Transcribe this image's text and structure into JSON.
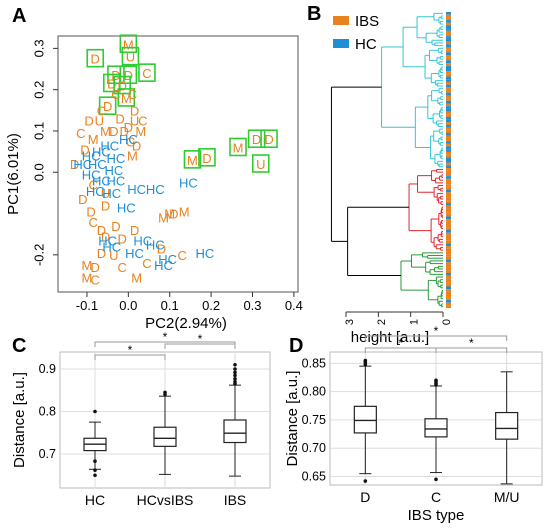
{
  "panels": {
    "a": "A",
    "b": "B",
    "c": "C",
    "d": "D"
  },
  "colors": {
    "ibs": "#e8821e",
    "hc": "#1e8fd6",
    "box_green": "#2ecc2e",
    "dend_cyan": "#33c6d6",
    "dend_red": "#e0262e",
    "dend_green": "#2a9a3a",
    "dend_black": "#000000"
  },
  "chart_data": [
    {
      "panel": "A",
      "type": "scatter",
      "xlabel": "PC2(2.94%)",
      "ylabel": "PC1(6.01%)",
      "xlim": [
        -0.17,
        0.41
      ],
      "ylim": [
        -0.29,
        0.33
      ],
      "xticks": [
        "-0.1",
        "0.0",
        "0.1",
        "0.2",
        "0.3",
        "0.4"
      ],
      "xtick_values": [
        -0.1,
        0.0,
        0.1,
        0.2,
        0.3,
        0.4
      ],
      "yticks": [
        "0.3",
        "0.2",
        "0.1",
        "0.0",
        "-0.2"
      ],
      "ytick_values": [
        0.3,
        0.2,
        0.1,
        0.0,
        -0.2
      ],
      "series": [
        {
          "name": "IBS",
          "points": [
            {
              "x": 0.0,
              "y": 0.31,
              "label": "M",
              "boxed": true
            },
            {
              "x": -0.08,
              "y": 0.275,
              "label": "D",
              "boxed": true
            },
            {
              "x": 0.005,
              "y": 0.28,
              "label": "U",
              "boxed": true
            },
            {
              "x": -0.03,
              "y": 0.235,
              "label": "D",
              "boxed": true
            },
            {
              "x": 0.0,
              "y": 0.235,
              "label": "D",
              "boxed": true
            },
            {
              "x": 0.045,
              "y": 0.24,
              "label": "C",
              "boxed": true
            },
            {
              "x": -0.04,
              "y": 0.215,
              "label": "D",
              "boxed": true
            },
            {
              "x": -0.015,
              "y": 0.21,
              "label": "D",
              "boxed": true
            },
            {
              "x": -0.005,
              "y": 0.18,
              "label": "M",
              "boxed": true
            },
            {
              "x": -0.05,
              "y": 0.16,
              "label": "D",
              "boxed": true
            },
            {
              "x": 0.155,
              "y": 0.03,
              "label": "M",
              "boxed": true
            },
            {
              "x": 0.19,
              "y": 0.035,
              "label": "D",
              "boxed": true
            },
            {
              "x": 0.265,
              "y": 0.06,
              "label": "M",
              "boxed": true
            },
            {
              "x": 0.31,
              "y": 0.08,
              "label": "D",
              "boxed": true
            },
            {
              "x": 0.34,
              "y": 0.08,
              "label": "D",
              "boxed": true
            },
            {
              "x": 0.32,
              "y": 0.02,
              "label": "U",
              "boxed": true
            },
            {
              "x": -0.03,
              "y": 0.19,
              "label": "C",
              "boxed": false
            },
            {
              "x": 0.01,
              "y": 0.19,
              "label": "C",
              "boxed": false
            },
            {
              "x": -0.065,
              "y": 0.15,
              "label": "C",
              "boxed": false
            },
            {
              "x": 0.015,
              "y": 0.15,
              "label": "D",
              "boxed": false
            },
            {
              "x": -0.095,
              "y": 0.125,
              "label": "D",
              "boxed": false
            },
            {
              "x": -0.07,
              "y": 0.125,
              "label": "U",
              "boxed": false
            },
            {
              "x": -0.02,
              "y": 0.13,
              "label": "D",
              "boxed": false
            },
            {
              "x": 0.015,
              "y": 0.125,
              "label": "U",
              "boxed": false
            },
            {
              "x": 0.035,
              "y": 0.125,
              "label": "C",
              "boxed": false
            },
            {
              "x": -0.055,
              "y": 0.1,
              "label": "M",
              "boxed": false
            },
            {
              "x": -0.035,
              "y": 0.1,
              "label": "D",
              "boxed": false
            },
            {
              "x": -0.01,
              "y": 0.1,
              "label": "D",
              "boxed": false
            },
            {
              "x": 0.0,
              "y": 0.11,
              "label": "D",
              "boxed": false
            },
            {
              "x": 0.03,
              "y": 0.1,
              "label": "M",
              "boxed": false
            },
            {
              "x": -0.115,
              "y": 0.095,
              "label": "C",
              "boxed": false
            },
            {
              "x": -0.085,
              "y": 0.08,
              "label": "M",
              "boxed": false
            },
            {
              "x": 0.005,
              "y": 0.075,
              "label": "C",
              "boxed": false
            },
            {
              "x": 0.02,
              "y": 0.065,
              "label": "D",
              "boxed": false
            },
            {
              "x": -0.105,
              "y": 0.055,
              "label": "D",
              "boxed": false
            },
            {
              "x": 0.01,
              "y": 0.04,
              "label": "M",
              "boxed": false
            },
            {
              "x": -0.13,
              "y": 0.02,
              "label": "D",
              "boxed": false
            },
            {
              "x": -0.085,
              "y": -0.03,
              "label": "C",
              "boxed": false
            },
            {
              "x": -0.055,
              "y": -0.05,
              "label": "U",
              "boxed": false
            },
            {
              "x": -0.11,
              "y": -0.065,
              "label": "D",
              "boxed": false
            },
            {
              "x": -0.09,
              "y": -0.095,
              "label": "D",
              "boxed": false
            },
            {
              "x": -0.055,
              "y": -0.08,
              "label": "D",
              "boxed": false
            },
            {
              "x": -0.085,
              "y": -0.12,
              "label": "C",
              "boxed": false
            },
            {
              "x": -0.065,
              "y": -0.14,
              "label": "D",
              "boxed": false
            },
            {
              "x": -0.03,
              "y": -0.13,
              "label": "D",
              "boxed": false
            },
            {
              "x": -0.015,
              "y": -0.16,
              "label": "D",
              "boxed": false
            },
            {
              "x": 0.015,
              "y": -0.14,
              "label": "D",
              "boxed": false
            },
            {
              "x": -0.055,
              "y": -0.155,
              "label": "D",
              "boxed": false
            },
            {
              "x": -0.065,
              "y": -0.195,
              "label": "D",
              "boxed": false
            },
            {
              "x": -0.035,
              "y": -0.2,
              "label": "U",
              "boxed": false
            },
            {
              "x": -0.015,
              "y": -0.23,
              "label": "C",
              "boxed": false
            },
            {
              "x": -0.1,
              "y": -0.225,
              "label": "M",
              "boxed": false
            },
            {
              "x": -0.08,
              "y": -0.23,
              "label": "D",
              "boxed": false
            },
            {
              "x": -0.1,
              "y": -0.255,
              "label": "M",
              "boxed": false
            },
            {
              "x": -0.08,
              "y": -0.26,
              "label": "C",
              "boxed": false
            },
            {
              "x": 0.02,
              "y": -0.255,
              "label": "M",
              "boxed": false
            },
            {
              "x": 0.085,
              "y": -0.11,
              "label": "M",
              "boxed": false
            },
            {
              "x": 0.1,
              "y": -0.1,
              "label": "M",
              "boxed": false
            },
            {
              "x": 0.11,
              "y": -0.1,
              "label": "D",
              "boxed": false
            },
            {
              "x": 0.135,
              "y": -0.095,
              "label": "M",
              "boxed": false
            },
            {
              "x": 0.08,
              "y": -0.185,
              "label": "D",
              "boxed": false
            },
            {
              "x": 0.045,
              "y": -0.22,
              "label": "C",
              "boxed": false
            },
            {
              "x": 0.13,
              "y": -0.2,
              "label": "C",
              "boxed": false
            }
          ]
        },
        {
          "name": "HC",
          "points": [
            {
              "x": 0.0,
              "y": 0.08,
              "label": "HC"
            },
            {
              "x": -0.045,
              "y": 0.065,
              "label": "HC"
            },
            {
              "x": -0.065,
              "y": 0.05,
              "label": "HC"
            },
            {
              "x": -0.09,
              "y": 0.04,
              "label": "HC"
            },
            {
              "x": -0.03,
              "y": 0.035,
              "label": "HC"
            },
            {
              "x": -0.075,
              "y": 0.02,
              "label": "HC"
            },
            {
              "x": -0.11,
              "y": 0.02,
              "label": "HC"
            },
            {
              "x": -0.035,
              "y": 0.005,
              "label": "HC"
            },
            {
              "x": -0.09,
              "y": -0.005,
              "label": "HC"
            },
            {
              "x": -0.065,
              "y": -0.02,
              "label": "HC"
            },
            {
              "x": -0.03,
              "y": -0.02,
              "label": "HC"
            },
            {
              "x": -0.08,
              "y": -0.045,
              "label": "HC"
            },
            {
              "x": -0.04,
              "y": -0.05,
              "label": "HC"
            },
            {
              "x": 0.02,
              "y": -0.04,
              "label": "HC"
            },
            {
              "x": 0.065,
              "y": -0.04,
              "label": "HC"
            },
            {
              "x": 0.145,
              "y": -0.025,
              "label": "HC"
            },
            {
              "x": -0.005,
              "y": -0.085,
              "label": "HC"
            },
            {
              "x": 0.035,
              "y": -0.165,
              "label": "HC"
            },
            {
              "x": 0.015,
              "y": -0.195,
              "label": "HC"
            },
            {
              "x": 0.065,
              "y": -0.175,
              "label": "HC"
            },
            {
              "x": -0.05,
              "y": -0.165,
              "label": "HC"
            },
            {
              "x": -0.04,
              "y": -0.18,
              "label": "HC"
            },
            {
              "x": 0.085,
              "y": -0.225,
              "label": "HC"
            },
            {
              "x": 0.095,
              "y": -0.21,
              "label": "HC"
            },
            {
              "x": 0.185,
              "y": -0.195,
              "label": "HC"
            }
          ]
        }
      ]
    },
    {
      "panel": "B",
      "type": "dendrogram",
      "xlabel": "height [a.u.]",
      "xticks": [
        "3",
        "2",
        "1",
        "0"
      ],
      "xtick_values": [
        3,
        2,
        1,
        0
      ],
      "legend": [
        "IBS",
        "HC"
      ],
      "legend_placement": "top-left",
      "clusters": [
        {
          "color": "cyan",
          "leaves": 58,
          "join_height": 1.9
        },
        {
          "color": "red",
          "leaves": 31,
          "join_height": 1.05
        },
        {
          "color": "green",
          "leaves": 21,
          "join_height": 1.3
        }
      ],
      "merges": [
        {
          "name": "red+green",
          "height": 2.95
        },
        {
          "name": "root",
          "height": 3.45
        }
      ]
    },
    {
      "panel": "C",
      "type": "boxplot",
      "ylabel": "Distance [a.u.]",
      "ylim": [
        0.62,
        0.94
      ],
      "yticks": [
        "0.7",
        "0.8",
        "0.9"
      ],
      "ytick_values": [
        0.7,
        0.8,
        0.9
      ],
      "categories": [
        "HC",
        "HCvsIBS",
        "IBS"
      ],
      "boxes": [
        {
          "q1": 0.708,
          "median": 0.723,
          "q3": 0.737,
          "whisker_low": 0.664,
          "whisker_high": 0.775,
          "outliers": [
            0.662,
            0.683,
            0.65,
            0.8
          ]
        },
        {
          "q1": 0.718,
          "median": 0.737,
          "q3": 0.763,
          "whisker_low": 0.652,
          "whisker_high": 0.836,
          "outliers": [
            0.84,
            0.845
          ]
        },
        {
          "q1": 0.727,
          "median": 0.749,
          "q3": 0.78,
          "whisker_low": 0.648,
          "whisker_high": 0.862,
          "outliers": [
            0.865,
            0.87,
            0.877,
            0.885,
            0.892,
            0.9,
            0.91
          ]
        }
      ],
      "significance": [
        {
          "from": 0,
          "to": 1,
          "label": "*"
        },
        {
          "from": 0,
          "to": 2,
          "label": "*"
        },
        {
          "from": 1,
          "to": 2,
          "label": "*"
        }
      ]
    },
    {
      "panel": "D",
      "type": "boxplot",
      "ylabel": "Distance [a.u.]",
      "xlabel": "IBS type",
      "ylim": [
        0.635,
        0.87
      ],
      "yticks": [
        "0.85",
        "0.80",
        "0.75",
        "0.70",
        "0.65"
      ],
      "ytick_values": [
        0.85,
        0.8,
        0.75,
        0.7,
        0.65
      ],
      "categories": [
        "D",
        "C",
        "M/U"
      ],
      "boxes": [
        {
          "q1": 0.727,
          "median": 0.749,
          "q3": 0.774,
          "whisker_low": 0.655,
          "whisker_high": 0.845,
          "outliers": [
            0.642,
            0.848,
            0.852,
            0.855
          ]
        },
        {
          "q1": 0.72,
          "median": 0.734,
          "q3": 0.752,
          "whisker_low": 0.657,
          "whisker_high": 0.81,
          "outliers": [
            0.645,
            0.812,
            0.815,
            0.818,
            0.82
          ]
        },
        {
          "q1": 0.716,
          "median": 0.735,
          "q3": 0.763,
          "whisker_low": 0.637,
          "whisker_high": 0.835,
          "outliers": []
        }
      ],
      "significance": [
        {
          "from": 0,
          "to": 1,
          "label": "*"
        },
        {
          "from": 0,
          "to": 2,
          "label": "*"
        },
        {
          "from": 1,
          "to": 2,
          "label": "*"
        }
      ]
    }
  ]
}
